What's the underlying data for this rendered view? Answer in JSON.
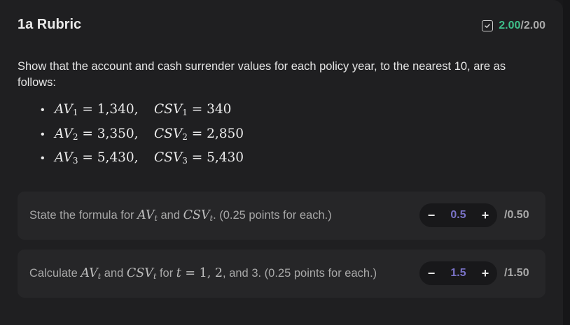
{
  "header": {
    "title": "1a Rubric",
    "score_earned": "2.00",
    "score_total": "/2.00"
  },
  "description": "Show that the account and cash surrender values for each policy year, to the nearest 10, are as follows:",
  "values": [
    {
      "av_label": "AV",
      "sub": "1",
      "av_value": "1,340,",
      "csv_label": "CSV",
      "csv_value": "340"
    },
    {
      "av_label": "AV",
      "sub": "2",
      "av_value": "3,350,",
      "csv_label": "CSV",
      "csv_value": "2,850"
    },
    {
      "av_label": "AV",
      "sub": "3",
      "av_value": "5,430,",
      "csv_label": "CSV",
      "csv_value": "5,430"
    }
  ],
  "criteria": [
    {
      "pre": "State the formula for ",
      "mid": " and ",
      "post": ". (0.25 points for each.)",
      "score": "0.5",
      "max": "/0.50"
    },
    {
      "pre": "Calculate ",
      "mid": " and ",
      "mid2": " for ",
      "post": ", and 3. (0.25 points for each.)",
      "score": "1.5",
      "max": "/1.50"
    }
  ],
  "stepper": {
    "minus": "−",
    "plus": "+"
  },
  "colors": {
    "accent_green": "#3fbf8a",
    "score_purple": "#7a73c8",
    "background": "#1f1f21"
  }
}
